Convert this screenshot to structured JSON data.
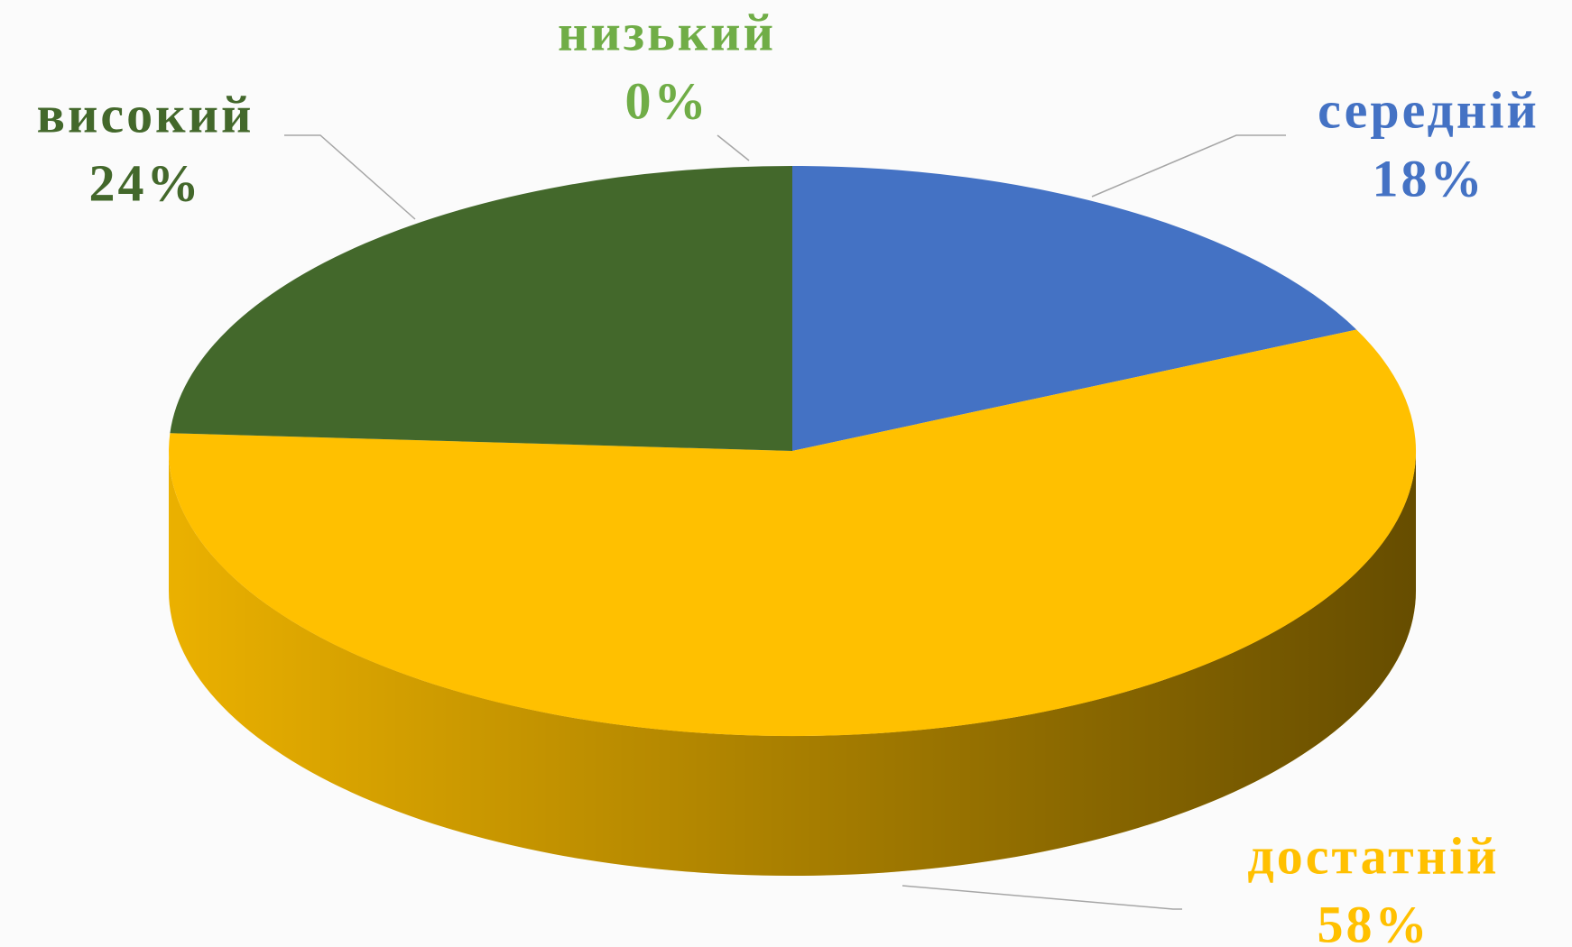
{
  "chart_data": {
    "type": "pie3d",
    "categories": [
      "низький",
      "середній",
      "достатній",
      "високий"
    ],
    "values": [
      0,
      18,
      58,
      24
    ],
    "value_labels": [
      "0%",
      "18%",
      "58%",
      "24%"
    ],
    "colors": [
      "#70ad47",
      "#4472c4",
      "#ffc000",
      "#43682b"
    ]
  }
}
